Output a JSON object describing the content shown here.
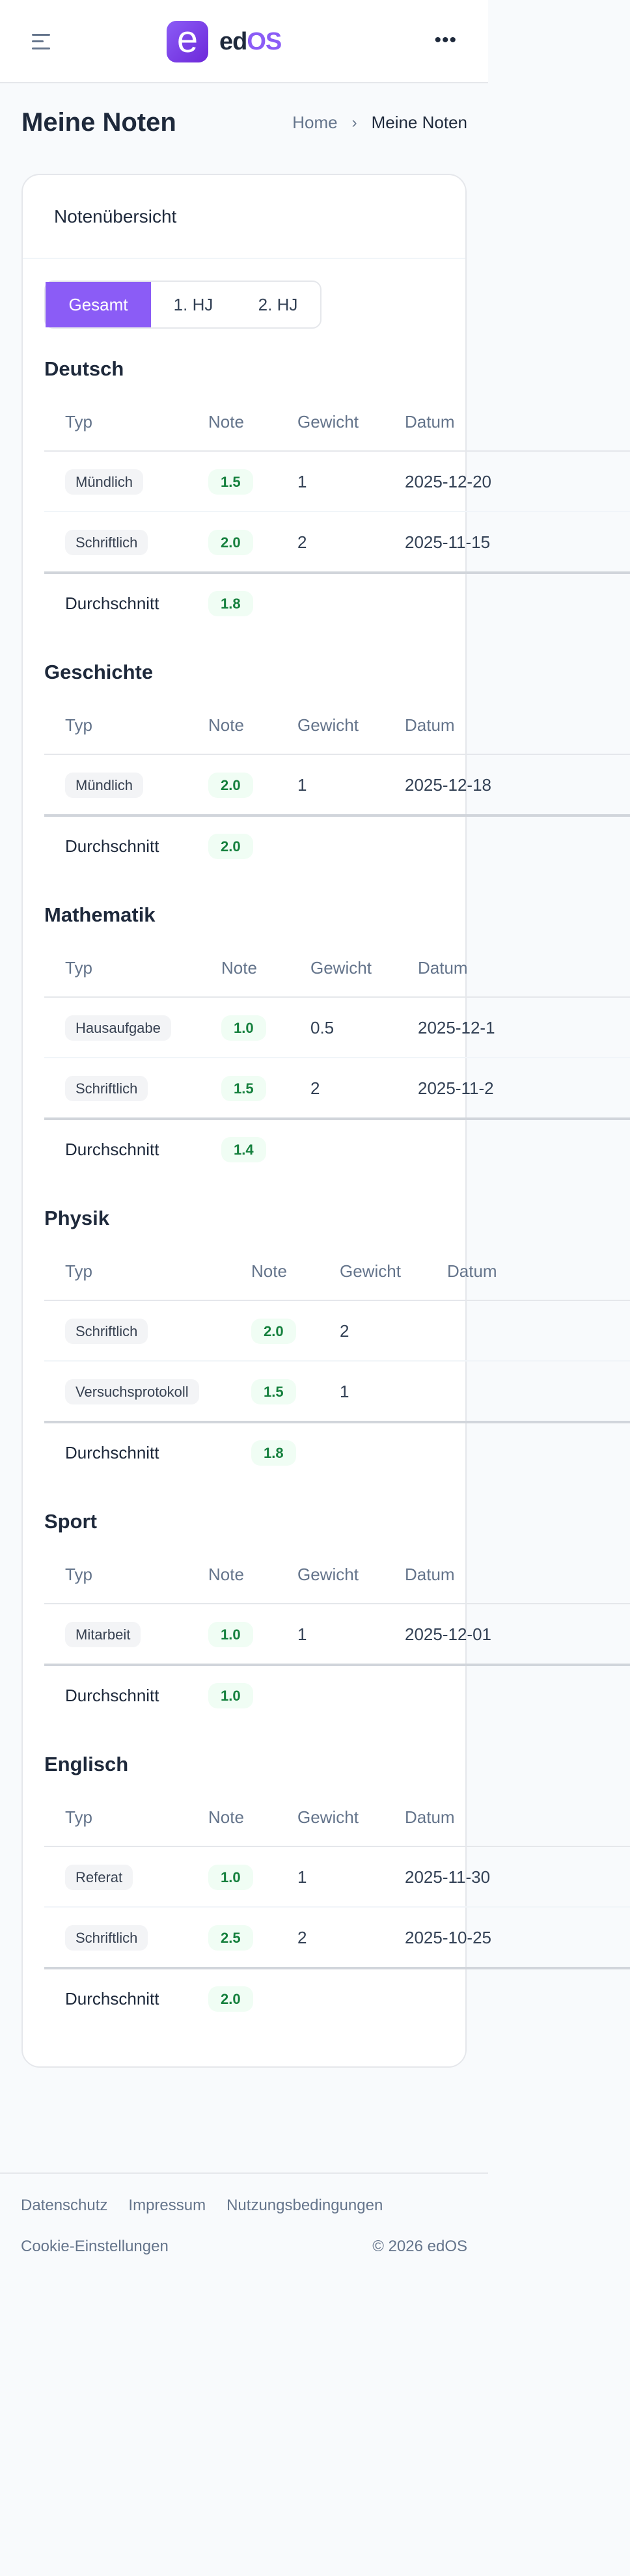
{
  "header": {
    "logo_letter": "e",
    "logo_text_1": "ed",
    "logo_text_2": "OS",
    "menu_icon": "hamburger-icon",
    "more_icon": "more-horizontal-icon",
    "more_label": "•••"
  },
  "page": {
    "title": "Meine Noten",
    "breadcrumb": {
      "home": "Home",
      "separator": "›",
      "current": "Meine Noten"
    }
  },
  "card": {
    "title": "Notenübersicht",
    "tabs": [
      {
        "label": "Gesamt",
        "active": true
      },
      {
        "label": "1. HJ",
        "active": false
      },
      {
        "label": "2. HJ",
        "active": false
      }
    ]
  },
  "columns": [
    "Typ",
    "Note",
    "Gewicht",
    "Datum"
  ],
  "average_label": "Durchschnitt",
  "subjects": [
    {
      "name": "Deutsch",
      "average": "1.8",
      "rows": [
        {
          "typ": "Mündlich",
          "note": "1.5",
          "gewicht": "1",
          "datum": "2025-12-20"
        },
        {
          "typ": "Schriftlich",
          "note": "2.0",
          "gewicht": "2",
          "datum": "2025-11-15"
        }
      ]
    },
    {
      "name": "Geschichte",
      "average": "2.0",
      "rows": [
        {
          "typ": "Mündlich",
          "note": "2.0",
          "gewicht": "1",
          "datum": "2025-12-18"
        }
      ]
    },
    {
      "name": "Mathematik",
      "average": "1.4",
      "rows": [
        {
          "typ": "Hausaufgabe",
          "note": "1.0",
          "gewicht": "0.5",
          "datum": "2025-12-1"
        },
        {
          "typ": "Schriftlich",
          "note": "1.5",
          "gewicht": "2",
          "datum": "2025-11-2"
        }
      ]
    },
    {
      "name": "Physik",
      "average": "1.8",
      "rows": [
        {
          "typ": "Schriftlich",
          "note": "2.0",
          "gewicht": "2"
        },
        {
          "typ": "Versuchsprotokoll",
          "note": "1.5",
          "gewicht": "1"
        }
      ]
    },
    {
      "name": "Sport",
      "average": "1.0",
      "rows": [
        {
          "typ": "Mitarbeit",
          "note": "1.0",
          "gewicht": "1",
          "datum": "2025-12-01"
        }
      ]
    },
    {
      "name": "Englisch",
      "average": "2.0",
      "rows": [
        {
          "typ": "Referat",
          "note": "1.0",
          "gewicht": "1",
          "datum": "2025-11-30"
        },
        {
          "typ": "Schriftlich",
          "note": "2.5",
          "gewicht": "2",
          "datum": "2025-10-25"
        }
      ]
    }
  ],
  "footer": {
    "links": [
      "Datenschutz",
      "Impressum",
      "Nutzungsbedingungen"
    ],
    "cookie": "Cookie-Einstellungen",
    "copyright": "© 2026 edOS"
  },
  "colors": {
    "accent": "#8b5cf6",
    "grade_text": "#15803d",
    "grade_bg": "#f0fdf4",
    "type_bg": "#f3f4f6"
  }
}
